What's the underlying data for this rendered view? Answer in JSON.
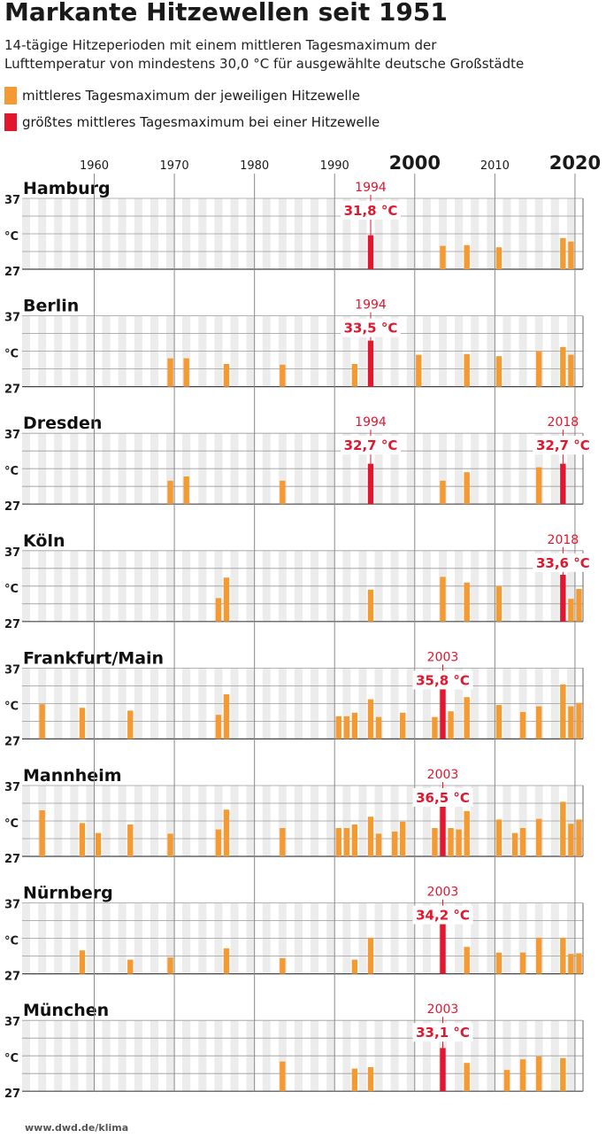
{
  "title": "Markante Hitzewellen seit 1951",
  "subtitle_line1": "14-tägige Hitzeperioden mit einem mittleren Tagesmaximum der",
  "subtitle_line2": "Lufttemperatur von mindestens 30,0 °C für ausgewählte deutsche Großstädte",
  "legend": [
    {
      "label": "mittleres Tagesmaximum der jeweiligen Hitzewelle",
      "color": "#f39a32"
    },
    {
      "label": "größtes mittleres Tagesmaximum bei einer Hitzewelle",
      "color": "#e2162d"
    }
  ],
  "source": "www.dwd.de/klima",
  "chart_data": {
    "type": "bar",
    "x_range": [
      1951,
      2021
    ],
    "y_range": [
      27,
      37
    ],
    "y_tick_labels": [
      "37",
      "°C",
      "27"
    ],
    "decade_labels": [
      {
        "year": 1960,
        "label": "1960",
        "bold": false
      },
      {
        "year": 1970,
        "label": "1970",
        "bold": false
      },
      {
        "year": 1980,
        "label": "1980",
        "bold": false
      },
      {
        "year": 1990,
        "label": "1990",
        "bold": false
      },
      {
        "year": 2000,
        "label": "2000",
        "bold": true
      },
      {
        "year": 2010,
        "label": "2010",
        "bold": false
      },
      {
        "year": 2020,
        "label": "2020",
        "bold": true
      }
    ],
    "colors": {
      "normal": "#f39a32",
      "max": "#e2162d",
      "stripe": "#ececec"
    },
    "cities": [
      {
        "name": "Hamburg",
        "bars": [
          [
            1994,
            31.8
          ],
          [
            2003,
            30.3
          ],
          [
            2006,
            30.4
          ],
          [
            2010,
            30.1
          ],
          [
            2018,
            31.4
          ],
          [
            2019,
            30.9
          ]
        ],
        "max": [
          {
            "year": 1994,
            "year_label": "1994",
            "value_label": "31,8 °C"
          }
        ]
      },
      {
        "name": "Berlin",
        "bars": [
          [
            1969,
            31.0
          ],
          [
            1971,
            31.0
          ],
          [
            1976,
            30.2
          ],
          [
            1983,
            30.1
          ],
          [
            1992,
            30.2
          ],
          [
            1994,
            33.5
          ],
          [
            2000,
            31.5
          ],
          [
            2006,
            31.6
          ],
          [
            2010,
            31.3
          ],
          [
            2015,
            32.0
          ],
          [
            2018,
            32.6
          ],
          [
            2019,
            31.5
          ]
        ],
        "max": [
          {
            "year": 1994,
            "year_label": "1994",
            "value_label": "33,5 °C"
          }
        ]
      },
      {
        "name": "Dresden",
        "bars": [
          [
            1969,
            30.3
          ],
          [
            1971,
            30.9
          ],
          [
            1983,
            30.3
          ],
          [
            1994,
            32.7
          ],
          [
            2003,
            30.3
          ],
          [
            2006,
            31.5
          ],
          [
            2015,
            32.2
          ],
          [
            2018,
            32.7
          ]
        ],
        "max": [
          {
            "year": 1994,
            "year_label": "1994",
            "value_label": "32,7 °C"
          },
          {
            "year": 2018,
            "year_label": "2018",
            "value_label": "32,7 °C"
          }
        ]
      },
      {
        "name": "Köln",
        "bars": [
          [
            1975,
            30.3
          ],
          [
            1976,
            33.2
          ],
          [
            1994,
            31.5
          ],
          [
            2003,
            33.3
          ],
          [
            2006,
            32.5
          ],
          [
            2010,
            32.0
          ],
          [
            2018,
            33.6
          ],
          [
            2019,
            30.2
          ],
          [
            2020,
            31.6
          ]
        ],
        "max": [
          {
            "year": 2018,
            "year_label": "2018",
            "value_label": "33,6 °C"
          }
        ]
      },
      {
        "name": "Frankfurt/Main",
        "bars": [
          [
            1953,
            31.9
          ],
          [
            1958,
            31.4
          ],
          [
            1964,
            31.0
          ],
          [
            1975,
            30.4
          ],
          [
            1976,
            33.3
          ],
          [
            1990,
            30.2
          ],
          [
            1991,
            30.2
          ],
          [
            1992,
            30.7
          ],
          [
            1994,
            32.6
          ],
          [
            1995,
            30.1
          ],
          [
            1998,
            30.7
          ],
          [
            2002,
            30.1
          ],
          [
            2003,
            35.8
          ],
          [
            2004,
            30.9
          ],
          [
            2006,
            32.9
          ],
          [
            2010,
            31.8
          ],
          [
            2013,
            30.8
          ],
          [
            2015,
            31.6
          ],
          [
            2018,
            34.7
          ],
          [
            2019,
            31.6
          ],
          [
            2020,
            32.1
          ]
        ],
        "max": [
          {
            "year": 2003,
            "year_label": "2003",
            "value_label": "35,8 °C"
          }
        ]
      },
      {
        "name": "Mannheim",
        "bars": [
          [
            1953,
            33.5
          ],
          [
            1958,
            31.7
          ],
          [
            1960,
            30.3
          ],
          [
            1964,
            31.5
          ],
          [
            1969,
            30.2
          ],
          [
            1975,
            30.8
          ],
          [
            1976,
            33.6
          ],
          [
            1983,
            31.0
          ],
          [
            1990,
            31.0
          ],
          [
            1991,
            31.0
          ],
          [
            1992,
            31.5
          ],
          [
            1994,
            32.6
          ],
          [
            1995,
            30.2
          ],
          [
            1997,
            30.5
          ],
          [
            1998,
            31.9
          ],
          [
            2002,
            31.0
          ],
          [
            2003,
            36.5
          ],
          [
            2004,
            31.0
          ],
          [
            2005,
            30.8
          ],
          [
            2006,
            33.4
          ],
          [
            2010,
            32.2
          ],
          [
            2012,
            30.3
          ],
          [
            2013,
            31.0
          ],
          [
            2015,
            32.3
          ],
          [
            2018,
            34.7
          ],
          [
            2019,
            31.6
          ],
          [
            2020,
            32.2
          ]
        ],
        "max": [
          {
            "year": 2003,
            "year_label": "2003",
            "value_label": "36,5 °C"
          }
        ]
      },
      {
        "name": "Nürnberg",
        "bars": [
          [
            1958,
            30.3
          ],
          [
            1964,
            29.0
          ],
          [
            1969,
            29.3
          ],
          [
            1976,
            30.6
          ],
          [
            1983,
            29.2
          ],
          [
            1992,
            29.0
          ],
          [
            1994,
            32.1
          ],
          [
            2003,
            34.2
          ],
          [
            2006,
            30.8
          ],
          [
            2010,
            30.0
          ],
          [
            2013,
            30.0
          ],
          [
            2015,
            32.1
          ],
          [
            2018,
            32.1
          ],
          [
            2019,
            29.8
          ],
          [
            2020,
            29.9
          ]
        ],
        "max": [
          {
            "year": 2003,
            "year_label": "2003",
            "value_label": "34,2 °C"
          }
        ]
      },
      {
        "name": "München",
        "bars": [
          [
            1983,
            31.2
          ],
          [
            1992,
            30.2
          ],
          [
            1994,
            30.4
          ],
          [
            2003,
            33.1
          ],
          [
            2006,
            31.0
          ],
          [
            2011,
            30.0
          ],
          [
            2013,
            31.5
          ],
          [
            2015,
            31.9
          ],
          [
            2018,
            31.7
          ]
        ],
        "max": [
          {
            "year": 2003,
            "year_label": "2003",
            "value_label": "33,1 °C"
          }
        ]
      }
    ]
  }
}
